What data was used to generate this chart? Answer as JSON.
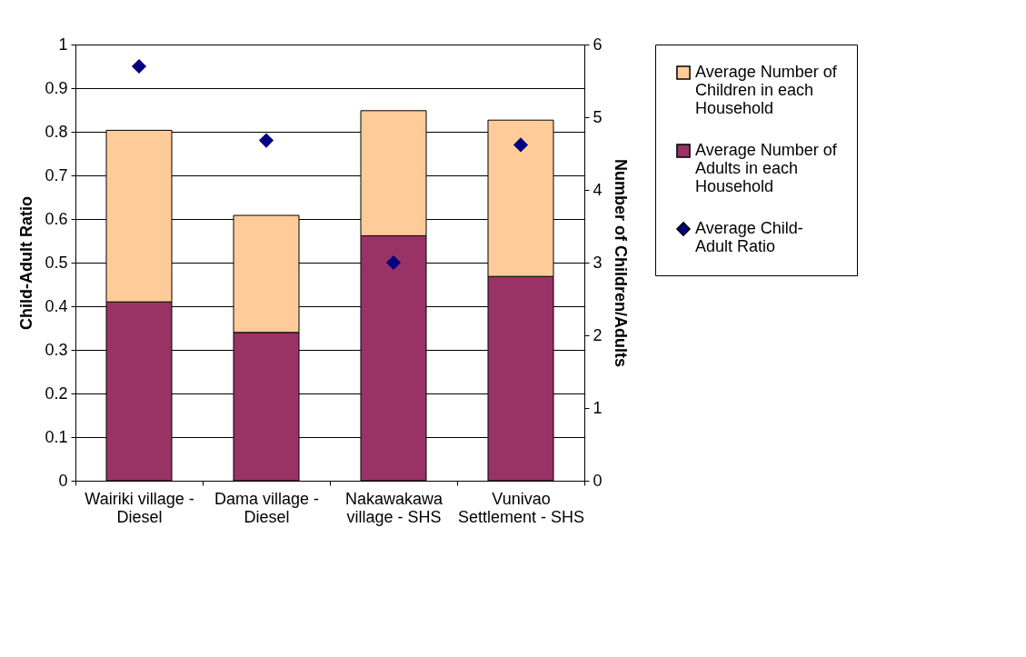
{
  "chart_data": {
    "type": "bar",
    "stacked": true,
    "ylabel": "Child-Adult Ratio",
    "y2label": "Number of Children/Adults",
    "categories": [
      "Wairiki village - Diesel",
      "Dama village - Diesel",
      "Nakawakawa village - SHS",
      "Vunivao Settlement - SHS"
    ],
    "series": [
      {
        "name": "Average Number of Adults in each Household",
        "axis": "y2",
        "color": "#993366",
        "values": [
          2.46,
          2.04,
          3.37,
          2.81
        ]
      },
      {
        "name": "Average Number of Children in each Household",
        "axis": "y2",
        "color": "#ffcc99",
        "values": [
          2.36,
          1.61,
          1.72,
          2.15
        ]
      },
      {
        "name": "Average Child-Adult Ratio",
        "type": "scatter",
        "axis": "y",
        "color": "#000080",
        "marker": "diamond",
        "values": [
          0.95,
          0.78,
          0.5,
          0.77
        ]
      }
    ],
    "ylim": [
      0,
      1
    ],
    "yticks": [
      0,
      0.1,
      0.2,
      0.3,
      0.4,
      0.5,
      0.6,
      0.7,
      0.8,
      0.9,
      1
    ],
    "y2lim": [
      0,
      6
    ],
    "y2ticks": [
      0,
      1,
      2,
      3,
      4,
      5,
      6
    ],
    "grid": "y",
    "legend": "right"
  }
}
